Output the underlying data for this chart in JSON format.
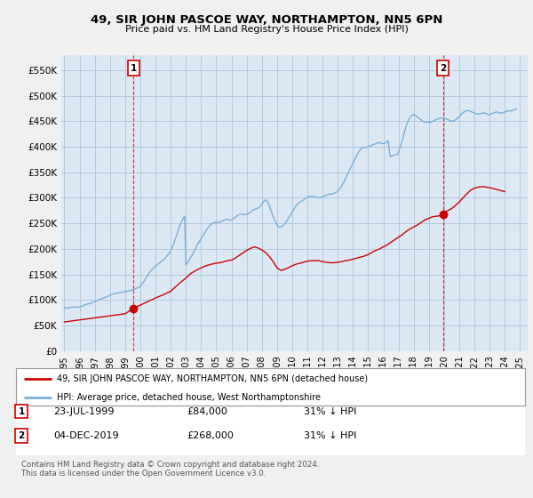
{
  "title": "49, SIR JOHN PASCOE WAY, NORTHAMPTON, NN5 6PN",
  "subtitle": "Price paid vs. HM Land Registry's House Price Index (HPI)",
  "legend_line1": "49, SIR JOHN PASCOE WAY, NORTHAMPTON, NN5 6PN (detached house)",
  "legend_line2": "HPI: Average price, detached house, West Northamptonshire",
  "footnote": "Contains HM Land Registry data © Crown copyright and database right 2024.\nThis data is licensed under the Open Government Licence v3.0.",
  "annotation1": {
    "label": "1",
    "date": "23-JUL-1999",
    "price": "£84,000",
    "hpi": "31% ↓ HPI"
  },
  "annotation2": {
    "label": "2",
    "date": "04-DEC-2019",
    "price": "£268,000",
    "hpi": "31% ↓ HPI"
  },
  "price_color": "#cc0000",
  "hpi_color": "#7aaed6",
  "background_color": "#f0f0f0",
  "plot_bg_color": "#dce9f5",
  "grid_color": "#b0c8e0",
  "ylim": [
    0,
    580000
  ],
  "yticks": [
    0,
    50000,
    100000,
    150000,
    200000,
    250000,
    300000,
    350000,
    400000,
    450000,
    500000,
    550000
  ],
  "marker1_x": 1999.56,
  "marker1_y": 84000,
  "marker2_x": 2019.92,
  "marker2_y": 268000,
  "ann1_x": 1999.56,
  "ann2_x": 2019.92,
  "xlim": [
    1994.8,
    2025.5
  ],
  "hpi_years": [
    1995.0,
    1995.08,
    1995.17,
    1995.25,
    1995.33,
    1995.42,
    1995.5,
    1995.58,
    1995.67,
    1995.75,
    1995.83,
    1995.92,
    1996.0,
    1996.08,
    1996.17,
    1996.25,
    1996.33,
    1996.42,
    1996.5,
    1996.58,
    1996.67,
    1996.75,
    1996.83,
    1996.92,
    1997.0,
    1997.08,
    1997.17,
    1997.25,
    1997.33,
    1997.42,
    1997.5,
    1997.58,
    1997.67,
    1997.75,
    1997.83,
    1997.92,
    1998.0,
    1998.08,
    1998.17,
    1998.25,
    1998.33,
    1998.42,
    1998.5,
    1998.58,
    1998.67,
    1998.75,
    1998.83,
    1998.92,
    1999.0,
    1999.08,
    1999.17,
    1999.25,
    1999.33,
    1999.42,
    1999.5,
    1999.58,
    1999.67,
    1999.75,
    1999.83,
    1999.92,
    2000.0,
    2000.08,
    2000.17,
    2000.25,
    2000.33,
    2000.42,
    2000.5,
    2000.58,
    2000.67,
    2000.75,
    2000.83,
    2000.92,
    2001.0,
    2001.08,
    2001.17,
    2001.25,
    2001.33,
    2001.42,
    2001.5,
    2001.58,
    2001.67,
    2001.75,
    2001.83,
    2001.92,
    2002.0,
    2002.08,
    2002.17,
    2002.25,
    2002.33,
    2002.42,
    2002.5,
    2002.58,
    2002.67,
    2002.75,
    2002.83,
    2002.92,
    2003.0,
    2003.08,
    2003.17,
    2003.25,
    2003.33,
    2003.42,
    2003.5,
    2003.58,
    2003.67,
    2003.75,
    2003.83,
    2003.92,
    2004.0,
    2004.08,
    2004.17,
    2004.25,
    2004.33,
    2004.42,
    2004.5,
    2004.58,
    2004.67,
    2004.75,
    2004.83,
    2004.92,
    2005.0,
    2005.08,
    2005.17,
    2005.25,
    2005.33,
    2005.42,
    2005.5,
    2005.58,
    2005.67,
    2005.75,
    2005.83,
    2005.92,
    2006.0,
    2006.08,
    2006.17,
    2006.25,
    2006.33,
    2006.42,
    2006.5,
    2006.58,
    2006.67,
    2006.75,
    2006.83,
    2006.92,
    2007.0,
    2007.08,
    2007.17,
    2007.25,
    2007.33,
    2007.42,
    2007.5,
    2007.58,
    2007.67,
    2007.75,
    2007.83,
    2007.92,
    2008.0,
    2008.08,
    2008.17,
    2008.25,
    2008.33,
    2008.42,
    2008.5,
    2008.58,
    2008.67,
    2008.75,
    2008.83,
    2008.92,
    2009.0,
    2009.08,
    2009.17,
    2009.25,
    2009.33,
    2009.42,
    2009.5,
    2009.58,
    2009.67,
    2009.75,
    2009.83,
    2009.92,
    2010.0,
    2010.08,
    2010.17,
    2010.25,
    2010.33,
    2010.42,
    2010.5,
    2010.58,
    2010.67,
    2010.75,
    2010.83,
    2010.92,
    2011.0,
    2011.08,
    2011.17,
    2011.25,
    2011.33,
    2011.42,
    2011.5,
    2011.58,
    2011.67,
    2011.75,
    2011.83,
    2011.92,
    2012.0,
    2012.08,
    2012.17,
    2012.25,
    2012.33,
    2012.42,
    2012.5,
    2012.58,
    2012.67,
    2012.75,
    2012.83,
    2012.92,
    2013.0,
    2013.08,
    2013.17,
    2013.25,
    2013.33,
    2013.42,
    2013.5,
    2013.58,
    2013.67,
    2013.75,
    2013.83,
    2013.92,
    2014.0,
    2014.08,
    2014.17,
    2014.25,
    2014.33,
    2014.42,
    2014.5,
    2014.58,
    2014.67,
    2014.75,
    2014.83,
    2014.92,
    2015.0,
    2015.08,
    2015.17,
    2015.25,
    2015.33,
    2015.42,
    2015.5,
    2015.58,
    2015.67,
    2015.75,
    2015.83,
    2015.92,
    2016.0,
    2016.08,
    2016.17,
    2016.25,
    2016.33,
    2016.42,
    2016.5,
    2016.58,
    2016.67,
    2016.75,
    2016.83,
    2016.92,
    2017.0,
    2017.08,
    2017.17,
    2017.25,
    2017.33,
    2017.42,
    2017.5,
    2017.58,
    2017.67,
    2017.75,
    2017.83,
    2017.92,
    2018.0,
    2018.08,
    2018.17,
    2018.25,
    2018.33,
    2018.42,
    2018.5,
    2018.58,
    2018.67,
    2018.75,
    2018.83,
    2018.92,
    2019.0,
    2019.08,
    2019.17,
    2019.25,
    2019.33,
    2019.42,
    2019.5,
    2019.58,
    2019.67,
    2019.75,
    2019.83,
    2019.92,
    2020.0,
    2020.08,
    2020.17,
    2020.25,
    2020.33,
    2020.42,
    2020.5,
    2020.58,
    2020.67,
    2020.75,
    2020.83,
    2020.92,
    2021.0,
    2021.08,
    2021.17,
    2021.25,
    2021.33,
    2021.42,
    2021.5,
    2021.58,
    2021.67,
    2021.75,
    2021.83,
    2021.92,
    2022.0,
    2022.08,
    2022.17,
    2022.25,
    2022.33,
    2022.42,
    2022.5,
    2022.58,
    2022.67,
    2022.75,
    2022.83,
    2022.92,
    2023.0,
    2023.08,
    2023.17,
    2023.25,
    2023.33,
    2023.42,
    2023.5,
    2023.58,
    2023.67,
    2023.75,
    2023.83,
    2023.92,
    2024.0,
    2024.08,
    2024.17,
    2024.25,
    2024.33,
    2024.42,
    2024.5,
    2024.58,
    2024.67,
    2024.75
  ],
  "hpi_values": [
    85000,
    84500,
    84000,
    84500,
    85000,
    85500,
    86000,
    86500,
    86000,
    85500,
    86000,
    86500,
    87000,
    87500,
    88000,
    89000,
    90000,
    91000,
    92000,
    92500,
    93000,
    94000,
    95000,
    96000,
    97000,
    98000,
    99000,
    100000,
    101000,
    102000,
    103000,
    104000,
    105000,
    106000,
    107000,
    108000,
    109000,
    110000,
    111000,
    112000,
    112500,
    113000,
    113500,
    114000,
    114500,
    115000,
    115500,
    116000,
    116500,
    117000,
    117500,
    118000,
    118500,
    119000,
    120000,
    121000,
    122000,
    123000,
    124000,
    125000,
    127000,
    130000,
    133000,
    137000,
    141000,
    145000,
    149000,
    153000,
    156000,
    159000,
    162000,
    164000,
    166000,
    168000,
    170000,
    172000,
    174000,
    176000,
    178000,
    180000,
    183000,
    186000,
    189000,
    192000,
    196000,
    202000,
    208000,
    215000,
    222000,
    229000,
    237000,
    244000,
    250000,
    255000,
    260000,
    264000,
    168000,
    172000,
    176000,
    180000,
    184000,
    188000,
    193000,
    198000,
    203000,
    208000,
    212000,
    216000,
    220000,
    224000,
    228000,
    232000,
    236000,
    240000,
    243000,
    246000,
    248000,
    250000,
    251000,
    252000,
    252000,
    252000,
    252000,
    253000,
    254000,
    255000,
    256000,
    257000,
    258000,
    258000,
    257000,
    256000,
    257000,
    258000,
    260000,
    262000,
    264000,
    266000,
    267000,
    268000,
    268000,
    268000,
    267000,
    267000,
    268000,
    269000,
    270000,
    272000,
    274000,
    276000,
    277000,
    278000,
    279000,
    280000,
    282000,
    284000,
    287000,
    291000,
    295000,
    296000,
    294000,
    290000,
    284000,
    277000,
    270000,
    263000,
    257000,
    252000,
    247000,
    244000,
    243000,
    243000,
    244000,
    246000,
    249000,
    252000,
    256000,
    260000,
    264000,
    268000,
    272000,
    276000,
    280000,
    284000,
    287000,
    290000,
    292000,
    293000,
    294000,
    296000,
    298000,
    300000,
    302000,
    303000,
    303000,
    303000,
    303000,
    303000,
    302000,
    301000,
    300000,
    300000,
    300000,
    301000,
    302000,
    303000,
    304000,
    305000,
    306000,
    307000,
    307000,
    307000,
    308000,
    309000,
    310000,
    311000,
    313000,
    316000,
    319000,
    323000,
    327000,
    332000,
    337000,
    343000,
    348000,
    353000,
    358000,
    363000,
    368000,
    373000,
    378000,
    383000,
    388000,
    392000,
    395000,
    397000,
    398000,
    399000,
    399000,
    399000,
    400000,
    401000,
    402000,
    403000,
    404000,
    405000,
    406000,
    407000,
    408000,
    408000,
    407000,
    406000,
    406000,
    407000,
    408000,
    410000,
    412000,
    384000,
    380000,
    382000,
    383000,
    384000,
    384000,
    385000,
    390000,
    397000,
    404000,
    413000,
    422000,
    432000,
    440000,
    447000,
    453000,
    457000,
    460000,
    462000,
    463000,
    462000,
    460000,
    458000,
    456000,
    454000,
    452000,
    450000,
    449000,
    448000,
    448000,
    448000,
    448000,
    448000,
    449000,
    450000,
    451000,
    452000,
    453000,
    454000,
    455000,
    456000,
    456000,
    456000,
    456000,
    455000,
    454000,
    453000,
    452000,
    451000,
    450000,
    450000,
    451000,
    453000,
    455000,
    457000,
    459000,
    462000,
    465000,
    467000,
    469000,
    470000,
    471000,
    471000,
    470000,
    469000,
    468000,
    467000,
    466000,
    465000,
    464000,
    464000,
    464000,
    465000,
    466000,
    466000,
    466000,
    465000,
    464000,
    463000,
    463000,
    464000,
    465000,
    466000,
    467000,
    468000,
    468000,
    467000,
    466000,
    466000,
    466000,
    467000,
    468000,
    469000,
    470000,
    471000,
    470000,
    470000,
    471000,
    472000,
    473000,
    474000
  ],
  "price_years": [
    1995.0,
    1995.5,
    1996.0,
    1996.5,
    1997.0,
    1997.5,
    1998.0,
    1998.5,
    1999.0,
    1999.56,
    2000.0,
    2000.5,
    2001.0,
    2001.5,
    2002.0,
    2002.33,
    2002.67,
    2003.0,
    2003.33,
    2003.67,
    2004.0,
    2004.33,
    2004.67,
    2005.0,
    2005.25,
    2005.5,
    2005.75,
    2006.0,
    2006.25,
    2006.5,
    2006.75,
    2007.0,
    2007.25,
    2007.5,
    2007.75,
    2008.0,
    2008.25,
    2008.5,
    2008.75,
    2009.0,
    2009.25,
    2009.5,
    2009.75,
    2010.0,
    2010.25,
    2010.5,
    2010.75,
    2011.0,
    2011.25,
    2011.5,
    2011.75,
    2012.0,
    2012.25,
    2012.5,
    2012.75,
    2013.0,
    2013.25,
    2013.5,
    2013.75,
    2014.0,
    2014.25,
    2014.5,
    2014.75,
    2015.0,
    2015.25,
    2015.5,
    2015.75,
    2016.0,
    2016.25,
    2016.5,
    2016.75,
    2017.0,
    2017.25,
    2017.5,
    2017.75,
    2018.0,
    2018.25,
    2018.5,
    2018.75,
    2019.0,
    2019.25,
    2019.5,
    2019.75,
    2019.92,
    2020.0,
    2020.25,
    2020.5,
    2020.75,
    2021.0,
    2021.25,
    2021.5,
    2021.75,
    2022.0,
    2022.25,
    2022.5,
    2022.75,
    2023.0,
    2023.25,
    2023.5,
    2023.75,
    2024.0
  ],
  "price_values": [
    57000,
    59000,
    61000,
    63000,
    65000,
    67000,
    69000,
    71000,
    73000,
    84000,
    90000,
    97000,
    104000,
    110000,
    117000,
    126000,
    135000,
    143000,
    152000,
    158000,
    163000,
    167000,
    170000,
    172000,
    173000,
    175000,
    177000,
    178000,
    182000,
    187000,
    192000,
    197000,
    201000,
    204000,
    202000,
    198000,
    193000,
    185000,
    175000,
    163000,
    158000,
    160000,
    163000,
    167000,
    170000,
    172000,
    174000,
    176000,
    177000,
    177000,
    177000,
    175000,
    174000,
    173000,
    173000,
    174000,
    175000,
    177000,
    178000,
    180000,
    182000,
    184000,
    186000,
    189000,
    193000,
    197000,
    200000,
    204000,
    208000,
    213000,
    218000,
    223000,
    228000,
    234000,
    239000,
    243000,
    247000,
    252000,
    257000,
    260000,
    263000,
    264000,
    265000,
    268000,
    272000,
    275000,
    279000,
    285000,
    292000,
    300000,
    308000,
    315000,
    319000,
    321000,
    322000,
    321000,
    320000,
    318000,
    316000,
    314000,
    312000
  ]
}
